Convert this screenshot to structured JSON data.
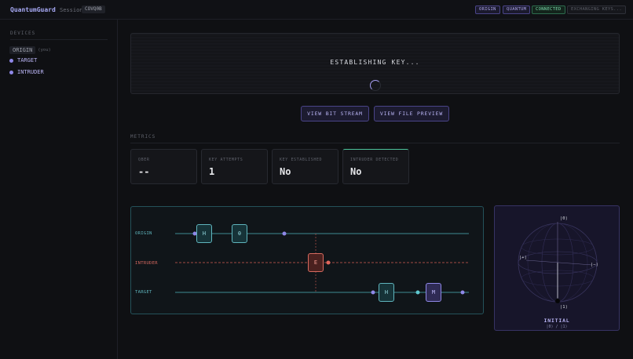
{
  "app": {
    "brand": "QuantumGuard",
    "session_label": "Session:",
    "session_id": "COVQ0B"
  },
  "header": {
    "badges": [
      {
        "label": "ORIGIN",
        "color": "#b0a8f0"
      },
      {
        "label": "QUANTUM",
        "color": "#b0a8f0"
      },
      {
        "label": "CONNECTED",
        "color": "#7ee0b0"
      },
      {
        "label": "EXCHANGING KEYS...",
        "color": "#5c5f68"
      }
    ]
  },
  "sidebar": {
    "title": "DEVICES",
    "devices": [
      {
        "name": "ORIGIN",
        "suffix": "(you)"
      },
      {
        "name": "TARGET"
      },
      {
        "name": "INTRUDER"
      }
    ]
  },
  "key_panel": {
    "title": "ESTABLISHING KEY..."
  },
  "actions": {
    "bit_stream": "VIEW BIT STREAM",
    "file_preview": "VIEW FILE PREVIEW"
  },
  "metrics": {
    "title": "METRICS",
    "cards": [
      {
        "label": "QBER",
        "value": "--"
      },
      {
        "label": "KEY ATTEMPTS",
        "value": "1"
      },
      {
        "label": "KEY ESTABLISHED",
        "value": "No"
      },
      {
        "label": "INTRUDER DETECTED",
        "value": "No",
        "accent": "#4bc49a"
      }
    ]
  },
  "circuit": {
    "wires": [
      {
        "label": "ORIGIN",
        "color": "#5fb5bd"
      },
      {
        "label": "INTRUDER",
        "color": "#d4675f"
      },
      {
        "label": "TARGET",
        "color": "#5fb5bd"
      }
    ],
    "gates": {
      "origin_h": "H",
      "origin_x": "θ",
      "intruder_e": "E",
      "target_h": "H",
      "target_m": "M"
    }
  },
  "bloch": {
    "label_0": "|0⟩",
    "label_1": "|1⟩",
    "label_plus": "|+⟩",
    "label_minus": "|−⟩",
    "state_title": "INITIAL",
    "state_sub": "|0⟩ / |1⟩"
  }
}
